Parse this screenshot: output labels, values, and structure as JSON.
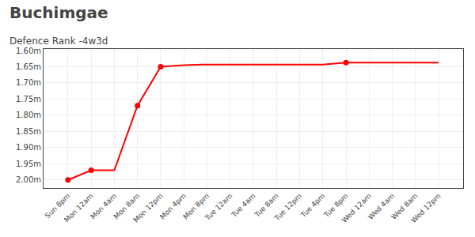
{
  "chart_data": {
    "type": "line",
    "title": "Buchimgae",
    "subtitle": "Defence Rank -4w3d",
    "categories": [
      "Sun 8pm",
      "Mon 12am",
      "Mon 4am",
      "Mon 8am",
      "Mon 12pm",
      "Mon 4pm",
      "Mon 8pm",
      "Tue 12am",
      "Tue 4am",
      "Tue 8am",
      "Tue 12pm",
      "Tue 4pm",
      "Tue 8pm",
      "Wed 12am",
      "Wed 4am",
      "Wed 8am",
      "Wed 12pm"
    ],
    "series": [
      {
        "type": "line",
        "color": "#ff0000",
        "values": [
          2.0,
          1.97,
          1.97,
          1.77,
          1.65,
          1.645,
          1.643,
          1.643,
          1.643,
          1.643,
          1.643,
          1.643,
          1.637,
          1.637,
          1.637,
          1.637,
          1.637
        ]
      },
      {
        "type": "scatter",
        "marker": "o",
        "color": "#ff0000",
        "values": [
          2.0,
          1.97,
          null,
          1.77,
          1.65,
          null,
          null,
          null,
          null,
          null,
          null,
          null,
          1.637,
          null,
          null,
          null,
          null
        ]
      }
    ],
    "ylim": [
      2.025,
      1.595
    ],
    "yticks": [
      {
        "value": 1.6,
        "label": "1.60m"
      },
      {
        "value": 1.65,
        "label": "1.65m"
      },
      {
        "value": 1.7,
        "label": "1.70m"
      },
      {
        "value": 1.75,
        "label": "1.75m"
      },
      {
        "value": 1.8,
        "label": "1.80m"
      },
      {
        "value": 1.85,
        "label": "1.85m"
      },
      {
        "value": 1.9,
        "label": "1.90m"
      },
      {
        "value": 1.95,
        "label": "1.95m"
      },
      {
        "value": 2.0,
        "label": "2.00m"
      }
    ],
    "grid": true
  }
}
